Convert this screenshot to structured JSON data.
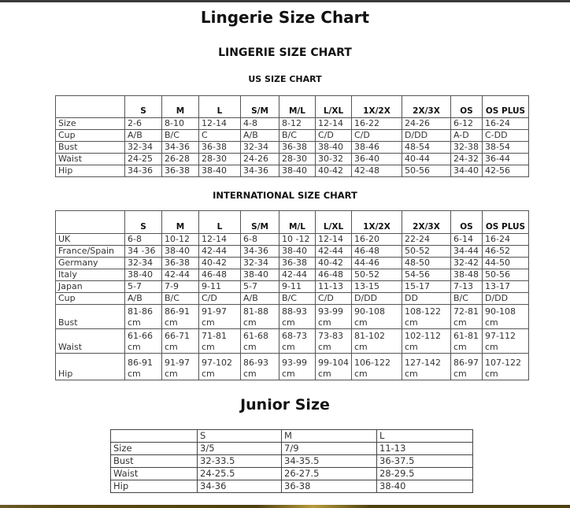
{
  "title": "Lingerie Size Chart",
  "subtitle": "LINGERIE SIZE CHART",
  "us": {
    "heading": "US SIZE CHART",
    "columns": [
      "",
      "S",
      "M",
      "L",
      "S/M",
      "M/L",
      "L/XL",
      "1X/2X",
      "2X/3X",
      "OS",
      "OS PLUS"
    ],
    "rows": [
      [
        "Size",
        "2-6",
        "8-10",
        "12-14",
        "4-8",
        "8-12",
        "12-14",
        "16-22",
        "24-26",
        "6-12",
        "16-24"
      ],
      [
        "Cup",
        "A/B",
        "B/C",
        "C",
        "A/B",
        "B/C",
        "C/D",
        "C/D",
        "D/DD",
        "A-D",
        "C-DD"
      ],
      [
        "Bust",
        "32-34",
        "34-36",
        "36-38",
        "32-34",
        "36-38",
        "38-40",
        "38-46",
        "48-54",
        "32-38",
        "38-54"
      ],
      [
        "Waist",
        "24-25",
        "26-28",
        "28-30",
        "24-26",
        "28-30",
        "30-32",
        "36-40",
        "40-44",
        "24-32",
        "36-44"
      ],
      [
        "Hip",
        "34-36",
        "36-38",
        "38-40",
        "34-36",
        "38-40",
        "40-42",
        "42-48",
        "50-56",
        "34-40",
        "42-56"
      ]
    ]
  },
  "international": {
    "heading": "INTERNATIONAL SIZE CHART",
    "columns": [
      "",
      "S",
      "M",
      "L",
      "S/M",
      "M/L",
      "L/XL",
      "1X/2X",
      "2X/3X",
      "OS",
      "OS PLUS"
    ],
    "rows": [
      [
        "UK",
        "6-8",
        "10-12",
        "12-14",
        "6-8",
        "10 -12",
        "12-14",
        "16-20",
        "22-24",
        "6-14",
        "16-24"
      ],
      [
        "France/Spain",
        "34 -36",
        "38-40",
        "42-44",
        "34-36",
        "38-40",
        "42-44",
        "46-48",
        "50-52",
        "34-44",
        "46-52"
      ],
      [
        "Germany",
        "32-34",
        "36-38",
        "40-42",
        "32-34",
        "36-38",
        "40-42",
        "44-46",
        "48-50",
        "32-42",
        "44-50"
      ],
      [
        "Italy",
        "38-40",
        "42-44",
        "46-48",
        "38-40",
        "42-44",
        "46-48",
        "50-52",
        "54-56",
        "38-48",
        "50-56"
      ],
      [
        "Japan",
        "5-7",
        "7-9",
        "9-11",
        "5-7",
        "9-11",
        "11-13",
        "13-15",
        "15-17",
        "7-13",
        "13-17"
      ],
      [
        "Cup",
        "A/B",
        "B/C",
        "C/D",
        "A/B",
        "B/C",
        "C/D",
        "D/DD",
        "DD",
        "B/C",
        "D/DD"
      ],
      [
        "Bust",
        "81-86 cm",
        "86-91 cm",
        "91-97 cm",
        "81-88 cm",
        "88-93 cm",
        "93-99 cm",
        "90-108 cm",
        "108-122 cm",
        "72-81 cm",
        "90-108 cm"
      ],
      [
        "Waist",
        "61-66 cm",
        "66-71 cm",
        "71-81 cm",
        "61-68 cm",
        "68-73 cm",
        "73-83 cm",
        "81-102 cm",
        "102-112 cm",
        "61-81 cm",
        "97-112 cm"
      ],
      [
        "Hip",
        "86-91 cm",
        "91-97 cm",
        "97-102 cm",
        "86-93 cm",
        "93-99 cm",
        "99-104 cm",
        "106-122 cm",
        "127-142 cm",
        "86-97 cm",
        "107-122 cm"
      ]
    ]
  },
  "junior": {
    "heading": "Junior Size",
    "columns": [
      "",
      "S",
      "M",
      "L"
    ],
    "rows": [
      [
        "Size",
        "3/5",
        "7/9",
        "11-13"
      ],
      [
        "Bust",
        "32-33.5",
        "34-35.5",
        "36-37.5"
      ],
      [
        "Waist",
        "24-25.5",
        "26-27.5",
        "28-29.5"
      ],
      [
        "Hip",
        "34-36",
        "36-38",
        "38-40"
      ]
    ]
  }
}
